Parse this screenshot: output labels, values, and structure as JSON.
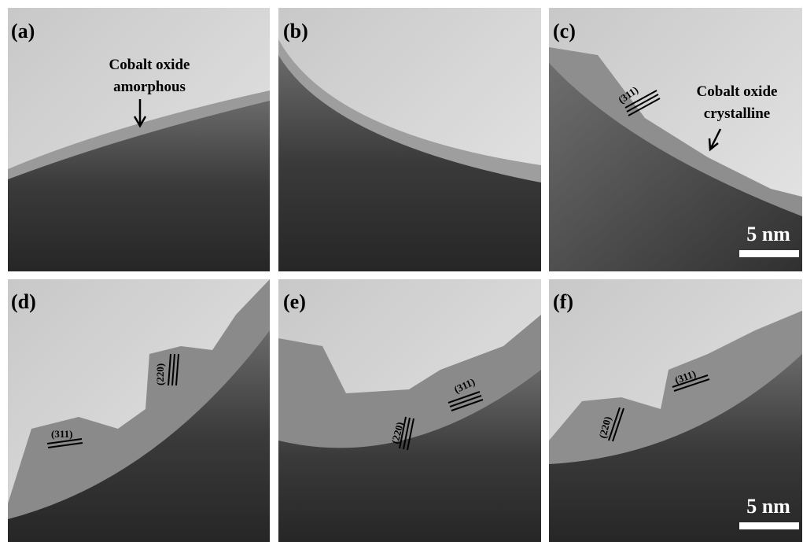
{
  "panels": [
    {
      "label": "(a)",
      "annotation": [
        "Cobalt oxide",
        "amorphous"
      ]
    },
    {
      "label": "(b)"
    },
    {
      "label": "(c)",
      "annotation": [
        "Cobalt oxide",
        "crystalline"
      ],
      "lattice": [
        "(311)"
      ],
      "scale_bar": "5 nm"
    },
    {
      "label": "(d)",
      "lattice": [
        "(220)",
        "(311)"
      ]
    },
    {
      "label": "(e)",
      "lattice": [
        "(220)",
        "(311)"
      ]
    },
    {
      "label": "(f)",
      "lattice": [
        "(220)",
        "(311)"
      ],
      "scale_bar": "5 nm"
    }
  ]
}
